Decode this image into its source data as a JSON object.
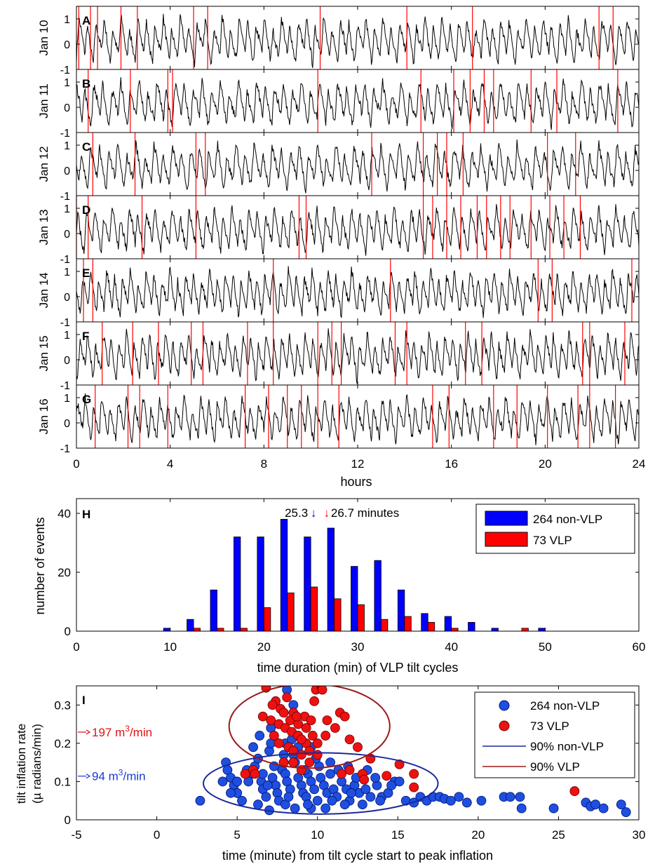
{
  "figure": {
    "tilt_panels": {
      "type": "line",
      "xlabel": "hours",
      "xlim": [
        0,
        24
      ],
      "xticks": [
        "0",
        "4",
        "8",
        "12",
        "16",
        "20",
        "24"
      ],
      "ylim": [
        -1,
        1.5
      ],
      "yticks": [
        "-1",
        "0",
        "1"
      ],
      "panels": [
        {
          "letter": "A",
          "label": "Jan 10",
          "vlp_hours": [
            0.1,
            0.6,
            0.9,
            1.9,
            2.6,
            5.0,
            5.6,
            10.4,
            14.1,
            16.9,
            22.3,
            22.9
          ]
        },
        {
          "letter": "B",
          "label": "Jan 11",
          "vlp_hours": [
            0.5,
            2.3,
            3.9,
            4.1,
            10.3,
            14.7,
            16.1,
            16.8,
            17.4,
            17.8,
            19.4,
            20.5,
            23.1
          ]
        },
        {
          "letter": "C",
          "label": "Jan 12",
          "vlp_hours": [
            0.7,
            2.5,
            5.1,
            5.5,
            12.6,
            14.8,
            15.4,
            15.8,
            16.5,
            20.1,
            21.3
          ]
        },
        {
          "letter": "D",
          "label": "Jan 13",
          "vlp_hours": [
            0.0,
            0.5,
            2.8,
            5.1,
            9.5,
            9.8,
            14.8,
            15.2,
            15.8,
            16.4,
            17.1,
            17.5,
            18.1,
            18.5,
            19.4,
            20.2,
            20.8,
            21.5
          ]
        },
        {
          "letter": "E",
          "label": "Jan 14",
          "vlp_hours": [
            0.3,
            0.7,
            8.4,
            13.4,
            19.7,
            20.3,
            23.7
          ]
        },
        {
          "letter": "F",
          "label": "Jan 15",
          "vlp_hours": [
            1.1,
            2.4,
            3.5,
            4.9,
            5.4,
            7.3,
            8.4,
            10.3,
            10.9,
            11.3,
            13.6,
            14.1,
            16.6,
            17.3,
            21.6,
            21.9,
            23.4
          ]
        },
        {
          "letter": "G",
          "label": "Jan 16",
          "vlp_hours": [
            0.8,
            2.2,
            2.7,
            3.9,
            7.2,
            8.2,
            9.0,
            9.6,
            10.3,
            11.2,
            15.2,
            15.9,
            17.8,
            18.8,
            20.1,
            21.4,
            21.9,
            23.0
          ]
        }
      ]
    },
    "histogram": {
      "type": "bar",
      "letter": "H",
      "xlabel": "time duration (min) of VLP tilt cycles",
      "ylabel": "number of events",
      "xlim": [
        0,
        60
      ],
      "ylim": [
        0,
        45
      ],
      "xticks": [
        "0",
        "10",
        "20",
        "30",
        "40",
        "50",
        "60"
      ],
      "yticks": [
        "0",
        "20",
        "40"
      ],
      "categories": [
        10,
        12.5,
        15,
        17.5,
        20,
        22.5,
        25,
        27.5,
        30,
        32.5,
        35,
        37.5,
        40,
        42.5,
        45,
        47.5,
        50
      ],
      "series": [
        {
          "name": "264 non-VLP",
          "color": "#0000ff",
          "values": [
            1,
            4,
            14,
            32,
            32,
            38,
            32,
            35,
            22,
            24,
            14,
            6,
            5,
            3,
            1,
            0,
            1
          ]
        },
        {
          "name": "73 VLP",
          "color": "#ff0000",
          "values": [
            0,
            1,
            1,
            1,
            8,
            13,
            15,
            11,
            9,
            4,
            5,
            3,
            1,
            0,
            0,
            1,
            0
          ]
        }
      ],
      "annotation_nonvlp": "25.3",
      "annotation_vlp": "26.7 minutes",
      "mean_arrow_glyph": "↓",
      "mean_values": [
        25.3,
        26.7
      ]
    },
    "scatter": {
      "type": "scatter",
      "letter": "I",
      "xlabel": "time (minute) from tilt cycle start to peak inflation",
      "ylabel_line1": "tilt inflation rate",
      "ylabel_line2": "(µ radians/min)",
      "xlim": [
        -5,
        30
      ],
      "ylim": [
        0,
        0.35
      ],
      "xticks": [
        "-5",
        "0",
        "5",
        "10",
        "15",
        "20",
        "25",
        "30"
      ],
      "yticks": [
        "0",
        "0.1",
        "0.2",
        "0.3"
      ],
      "legend": {
        "nonvlp": "264 non-VLP",
        "vlp": "73 VLP",
        "ellipse_nonvlp": "90% non-VLP",
        "ellipse_vlp": "90% VLP"
      },
      "annotation_red_value": "197 m",
      "annotation_red_unit": "/min",
      "annotation_red_y": 0.22,
      "annotation_blue_value": "94 m",
      "annotation_blue_unit": "/min",
      "annotation_blue_y": 0.105,
      "annotation_superscript": "3",
      "ellipse_nonvlp": {
        "center": [
          10.2,
          0.095
        ],
        "radii": [
          7.3,
          0.08
        ]
      },
      "ellipse_vlp": {
        "center": [
          9.5,
          0.245
        ],
        "radii": [
          5.0,
          0.11
        ]
      },
      "nonvlp_points": [
        [
          2.7,
          0.05
        ],
        [
          4.3,
          0.15
        ],
        [
          4.4,
          0.13
        ],
        [
          4.6,
          0.11
        ],
        [
          4.1,
          0.1
        ],
        [
          4.8,
          0.09
        ],
        [
          5.0,
          0.07
        ],
        [
          5.3,
          0.05
        ],
        [
          5.6,
          0.13
        ],
        [
          5.9,
          0.12
        ],
        [
          6.1,
          0.14
        ],
        [
          6.3,
          0.16
        ],
        [
          6.5,
          0.1
        ],
        [
          6.6,
          0.08
        ],
        [
          6.8,
          0.06
        ],
        [
          7.0,
          0.18
        ],
        [
          7.2,
          0.11
        ],
        [
          7.4,
          0.09
        ],
        [
          7.5,
          0.07
        ],
        [
          7.6,
          0.05
        ],
        [
          7.8,
          0.13
        ],
        [
          8.0,
          0.12
        ],
        [
          8.1,
          0.1
        ],
        [
          8.3,
          0.08
        ],
        [
          8.5,
          0.17
        ],
        [
          8.6,
          0.15
        ],
        [
          8.8,
          0.11
        ],
        [
          9.0,
          0.09
        ],
        [
          9.1,
          0.07
        ],
        [
          9.3,
          0.06
        ],
        [
          9.4,
          0.12
        ],
        [
          9.6,
          0.1
        ],
        [
          9.8,
          0.08
        ],
        [
          10.0,
          0.05
        ],
        [
          10.2,
          0.11
        ],
        [
          10.4,
          0.09
        ],
        [
          10.6,
          0.07
        ],
        [
          10.8,
          0.12
        ],
        [
          11.0,
          0.08
        ],
        [
          11.2,
          0.06
        ],
        [
          11.5,
          0.1
        ],
        [
          11.8,
          0.08
        ],
        [
          12.0,
          0.05
        ],
        [
          12.3,
          0.09
        ],
        [
          12.6,
          0.07
        ],
        [
          13.0,
          0.08
        ],
        [
          13.3,
          0.06
        ],
        [
          13.7,
          0.09
        ],
        [
          14.0,
          0.06
        ],
        [
          14.4,
          0.07
        ],
        [
          14.8,
          0.1
        ],
        [
          15.1,
          0.1
        ],
        [
          15.5,
          0.05
        ],
        [
          16.0,
          0.045
        ],
        [
          16.4,
          0.06
        ],
        [
          16.8,
          0.05
        ],
        [
          17.2,
          0.06
        ],
        [
          17.6,
          0.06
        ],
        [
          17.9,
          0.055
        ],
        [
          18.3,
          0.05
        ],
        [
          18.8,
          0.06
        ],
        [
          19.3,
          0.045
        ],
        [
          20.2,
          0.05
        ],
        [
          21.6,
          0.06
        ],
        [
          22.0,
          0.06
        ],
        [
          22.7,
          0.03
        ],
        [
          22.6,
          0.06
        ],
        [
          24.7,
          0.03
        ],
        [
          26.7,
          0.045
        ],
        [
          27.0,
          0.035
        ],
        [
          27.3,
          0.04
        ],
        [
          27.8,
          0.03
        ],
        [
          28.9,
          0.04
        ],
        [
          29.2,
          0.02
        ],
        [
          6.0,
          0.19
        ],
        [
          7.1,
          0.2
        ],
        [
          8.0,
          0.2
        ],
        [
          8.8,
          0.19
        ],
        [
          9.6,
          0.19
        ],
        [
          8.4,
          0.21
        ],
        [
          9.2,
          0.13
        ],
        [
          10.1,
          0.14
        ],
        [
          10.8,
          0.15
        ],
        [
          7.9,
          0.15
        ],
        [
          6.6,
          0.12
        ],
        [
          5.7,
          0.1
        ],
        [
          9.9,
          0.16
        ],
        [
          11.3,
          0.13
        ],
        [
          12.4,
          0.11
        ],
        [
          13.6,
          0.11
        ],
        [
          8.6,
          0.03
        ],
        [
          9.6,
          0.03
        ],
        [
          7.0,
          0.025
        ],
        [
          11.7,
          0.04
        ],
        [
          10.5,
          0.03
        ],
        [
          8.0,
          0.04
        ],
        [
          12.8,
          0.04
        ],
        [
          6.3,
          0.04
        ],
        [
          5.0,
          0.1
        ],
        [
          4.6,
          0.07
        ],
        [
          11.9,
          0.14
        ],
        [
          13.1,
          0.13
        ],
        [
          14.6,
          0.09
        ],
        [
          10.9,
          0.05
        ],
        [
          7.3,
          0.14
        ],
        [
          9.4,
          0.04
        ],
        [
          8.2,
          0.06
        ],
        [
          6.9,
          0.09
        ],
        [
          12.1,
          0.07
        ],
        [
          13.9,
          0.05
        ],
        [
          7.9,
          0.17
        ],
        [
          6.4,
          0.22
        ],
        [
          7.1,
          0.24
        ],
        [
          8.1,
          0.34
        ],
        [
          8.5,
          0.3
        ]
      ],
      "vlp_points": [
        [
          6.8,
          0.345
        ],
        [
          7.4,
          0.31
        ],
        [
          7.7,
          0.29
        ],
        [
          8.1,
          0.32
        ],
        [
          8.5,
          0.28
        ],
        [
          7.2,
          0.3
        ],
        [
          6.6,
          0.27
        ],
        [
          7.1,
          0.26
        ],
        [
          7.6,
          0.25
        ],
        [
          8.3,
          0.26
        ],
        [
          8.8,
          0.25
        ],
        [
          9.2,
          0.27
        ],
        [
          9.6,
          0.26
        ],
        [
          8.0,
          0.24
        ],
        [
          8.4,
          0.23
        ],
        [
          8.8,
          0.22
        ],
        [
          9.3,
          0.2
        ],
        [
          9.7,
          0.22
        ],
        [
          7.3,
          0.22
        ],
        [
          7.6,
          0.2
        ],
        [
          8.2,
          0.19
        ],
        [
          8.5,
          0.18
        ],
        [
          9.0,
          0.17
        ],
        [
          9.5,
          0.18
        ],
        [
          10.0,
          0.2
        ],
        [
          10.5,
          0.22
        ],
        [
          9.8,
          0.31
        ],
        [
          9.9,
          0.34
        ],
        [
          10.3,
          0.34
        ],
        [
          11.1,
          0.24
        ],
        [
          11.4,
          0.28
        ],
        [
          11.7,
          0.27
        ],
        [
          12.0,
          0.21
        ],
        [
          12.5,
          0.19
        ],
        [
          13.3,
          0.16
        ],
        [
          15.1,
          0.145
        ],
        [
          16.0,
          0.12
        ],
        [
          14.3,
          0.115
        ],
        [
          12.8,
          0.12
        ],
        [
          12.0,
          0.13
        ],
        [
          6.0,
          0.13
        ],
        [
          5.5,
          0.12
        ],
        [
          9.0,
          0.13
        ],
        [
          9.5,
          0.15
        ],
        [
          10.0,
          0.17
        ],
        [
          7.9,
          0.15
        ],
        [
          8.5,
          0.15
        ],
        [
          11.5,
          0.12
        ],
        [
          26.0,
          0.075
        ],
        [
          16.0,
          0.085
        ],
        [
          12.9,
          0.105
        ],
        [
          9.3,
          0.24
        ],
        [
          8.7,
          0.27
        ],
        [
          7.9,
          0.28
        ],
        [
          10.6,
          0.26
        ],
        [
          9.0,
          0.21
        ],
        [
          6.1,
          0.12
        ]
      ]
    }
  }
}
